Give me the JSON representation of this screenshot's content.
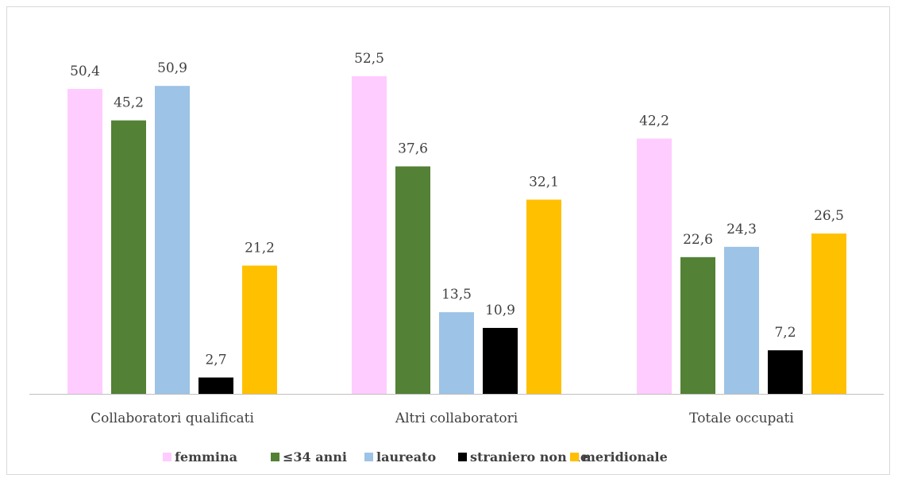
{
  "chart_data": {
    "type": "bar",
    "categories": [
      "Collaboratori qualificati",
      "Altri collaboratori",
      "Totale occupati"
    ],
    "series": [
      {
        "name": "femmina",
        "color": "#ffccff",
        "values": [
          50.4,
          52.5,
          42.2
        ],
        "labels": [
          "50,4",
          "52,5",
          "42,2"
        ]
      },
      {
        "name": "≤34 anni",
        "color": "#538135",
        "values": [
          45.2,
          37.6,
          22.6
        ],
        "labels": [
          "45,2",
          "37,6",
          "22,6"
        ]
      },
      {
        "name": "laureato",
        "color": "#9dc3e6",
        "values": [
          50.9,
          13.5,
          24.3
        ],
        "labels": [
          "50,9",
          "13,5",
          "24,3"
        ]
      },
      {
        "name": "straniero non ue",
        "color": "#000000",
        "values": [
          2.7,
          10.9,
          7.2
        ],
        "labels": [
          "2,7",
          "10,9",
          "7,2"
        ]
      },
      {
        "name": "meridionale",
        "color": "#ffc000",
        "values": [
          21.2,
          32.1,
          26.5
        ],
        "labels": [
          "21,2",
          "32,1",
          "26,5"
        ]
      }
    ],
    "ylim": [
      0,
      52.5
    ],
    "grid": false,
    "legend_position": "bottom",
    "axis_color": "#bfbfbf"
  }
}
